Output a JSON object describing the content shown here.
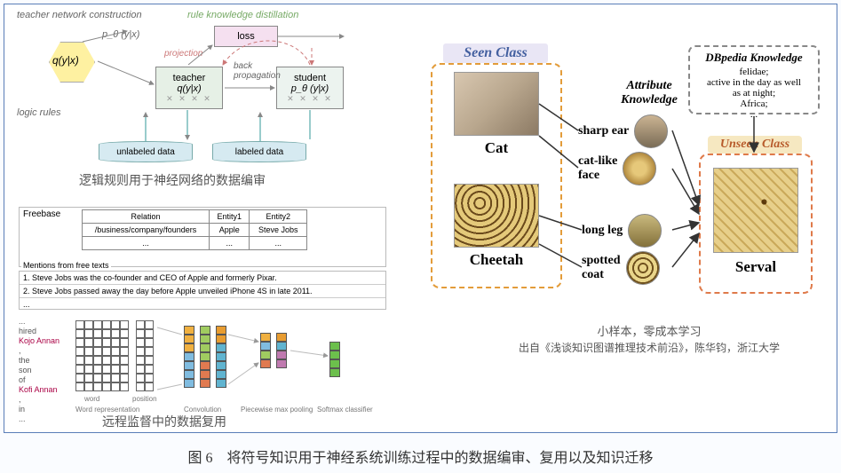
{
  "figure_caption": "图 6　将符号知识用于神经系统训练过程中的数据编审、复用以及知识迁移",
  "colors": {
    "outer_border": "#5a7eb8",
    "hexagon_fill": "#fef1a1",
    "loss_fill": "#f5e0f0",
    "teacher_fill": "#e6f0e6",
    "student_fill": "#ecf3ef",
    "cylinder_fill": "#d6eaf1",
    "seen_border": "#e39c3a",
    "unseen_border": "#df7a4a",
    "seen_title_bg": "#e9e6f5",
    "unseen_title_bg": "#f6e8c1"
  },
  "topleft": {
    "teacher_construction": "teacher network construction",
    "rule_kd": "rule knowledge distillation",
    "logic_rules": "logic rules",
    "hex": "q(y|x)",
    "loss": "loss",
    "projection": "projection",
    "back_prop": "back\npropagation",
    "teacher": {
      "name": "teacher",
      "formula": "q(y|x)"
    },
    "student": {
      "name": "student",
      "formula": "p_θ (y|x)"
    },
    "p_theta": "p_θ (y|x)",
    "unlabeled": "unlabeled data",
    "labeled": "labeled data",
    "caption": "逻辑规则用于神经网络的数据编审"
  },
  "bottomleft": {
    "freebase": "Freebase",
    "table": {
      "headers": [
        "Relation",
        "Entity1",
        "Entity2"
      ],
      "row": [
        "/business/company/founders",
        "Apple",
        "Steve Jobs"
      ],
      "ellipsis": "..."
    },
    "mentions_title": "Mentions from free texts",
    "mentions": [
      "1. Steve Jobs was the co-founder and CEO of Apple and formerly Pixar.",
      "2. Steve Jobs passed away the day before Apple unveiled iPhone 4S in late 2011."
    ],
    "words": [
      "...",
      "hired",
      "Kojo Annan",
      ",",
      "the",
      "son",
      "of",
      "Kofi Annan",
      ",",
      "in",
      "..."
    ],
    "axis": {
      "word": "word",
      "position": "position",
      "wordrep": "Word representation",
      "conv": "Convolution",
      "pool": "Piecewise max pooling",
      "softmax": "Softmax classifier"
    },
    "caption": "远程监督中的数据复用",
    "strip_colors": {
      "s1": [
        "#f0b040",
        "#f0b040",
        "#f0b040",
        "#80bce0",
        "#80bce0",
        "#80bce0",
        "#80bce0"
      ],
      "s2": [
        "#a0cc60",
        "#a0cc60",
        "#a0cc60",
        "#a0cc60",
        "#e07a50",
        "#e07a50",
        "#e07a50"
      ],
      "s3": [
        "#e89c30",
        "#e89c30",
        "#60b4d0",
        "#60b4d0",
        "#60b4d0",
        "#60b4d0",
        "#60b4d0"
      ],
      "p1": [
        "#f0b040",
        "#80bce0",
        "#a0cc60",
        "#e07a50"
      ],
      "p2": [
        "#e89c30",
        "#60b4d0",
        "#c07ab0",
        "#c07ab0"
      ],
      "sm": [
        "#6cbf4c",
        "#6cbf4c",
        "#6cbf4c",
        "#6cbf4c"
      ]
    }
  },
  "right": {
    "seen_title": "Seen Class",
    "unseen_title": "Unseen Class",
    "attr_title": "Attribute\nKnowledge",
    "animals": {
      "cat": "Cat",
      "cheetah": "Cheetah",
      "serval": "Serval"
    },
    "attrs": {
      "sharp_ear": "sharp ear",
      "cat_face": "cat-like\nface",
      "long_leg": "long leg",
      "spotted": "spotted\ncoat"
    },
    "dbpedia": {
      "title": "DBpedia Knowledge",
      "body": "felidae;\nactive in the day as well\nas at night;\nAfrica;\n..."
    },
    "caption_line1": "小样本，零成本学习",
    "caption_line2": "出自《浅谈知识图谱推理技术前沿》，陈华钧，浙江大学"
  }
}
